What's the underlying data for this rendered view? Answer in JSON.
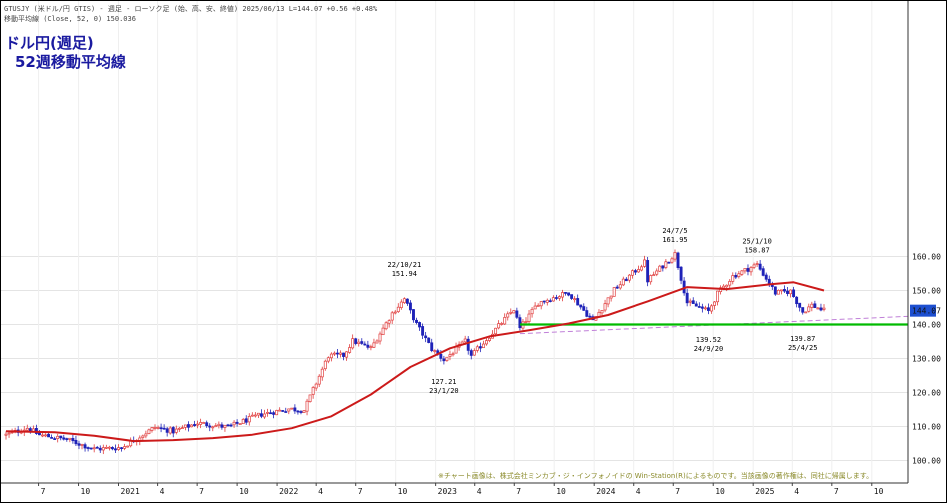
{
  "header": {
    "line1": "GTUSJY (米ドル/円 GTIS) - 週足 - ローソク足 (始、高、安、終値) 2025/06/13 L=144.07 +0.56 +0.48%",
    "line2": "移動平均線 (Close, 52, 0) 150.036"
  },
  "title": {
    "line1": "ドル円(週足)",
    "line2": "52週移動平均線"
  },
  "copyright_note": "※チャート画像は、株式会社ミンカブ・ジ・インフォノイドの Win-Station(R)によるものです。当該画像の著作権は、同社に帰属します。",
  "price_tag": "144.07",
  "chart_data": {
    "type": "candlestick",
    "timeframe": "weekly",
    "symbol": "GTUSJY",
    "last_close": 144.07,
    "ylim": [
      97.5,
      167
    ],
    "y_ticks": [
      "100.00",
      "110.00",
      "120.00",
      "130.00",
      "140.00",
      "150.00",
      "160.00"
    ],
    "x_tick_labels": [
      "7",
      "10",
      "2021",
      "4",
      "7",
      "10",
      "2022",
      "4",
      "7",
      "10",
      "2023",
      "4",
      "7",
      "10",
      "2024",
      "4",
      "7",
      "10",
      "2025",
      "4",
      "7",
      "10"
    ],
    "colors": {
      "up": "#e03c3c",
      "down": "#1e22b8",
      "ma": "#cc1a1a",
      "support": "#00bb00",
      "trend": "#c080d8",
      "price_tag": "#1d4fd0"
    },
    "close_path": [
      {
        "date": "2020-04-17",
        "close": 107.5
      },
      {
        "date": "2020-06-05",
        "close": 109.6
      },
      {
        "date": "2020-07-03",
        "close": 107.5
      },
      {
        "date": "2020-09-04",
        "close": 106.2
      },
      {
        "date": "2020-11-06",
        "close": 103.4
      },
      {
        "date": "2021-01-08",
        "close": 103.8
      },
      {
        "date": "2021-03-26",
        "close": 109.8
      },
      {
        "date": "2021-05-07",
        "close": 108.6
      },
      {
        "date": "2021-07-02",
        "close": 111.0
      },
      {
        "date": "2021-09-10",
        "close": 109.8
      },
      {
        "date": "2021-11-26",
        "close": 113.6
      },
      {
        "date": "2022-01-28",
        "close": 115.2
      },
      {
        "date": "2022-03-04",
        "close": 114.8
      },
      {
        "date": "2022-04-29",
        "close": 130.8
      },
      {
        "date": "2022-06-03",
        "close": 130.9
      },
      {
        "date": "2022-06-24",
        "close": 135.2
      },
      {
        "date": "2022-08-05",
        "close": 133.0
      },
      {
        "date": "2022-09-23",
        "close": 143.3
      },
      {
        "date": "2022-10-21",
        "close": 147.5
      },
      {
        "date": "2022-11-18",
        "close": 140.1
      },
      {
        "date": "2022-12-23",
        "close": 132.8
      },
      {
        "date": "2023-01-20",
        "close": 129.6
      },
      {
        "date": "2023-03-10",
        "close": 135.0
      },
      {
        "date": "2023-03-24",
        "close": 130.7
      },
      {
        "date": "2023-06-30",
        "close": 144.5
      },
      {
        "date": "2023-07-14",
        "close": 138.8
      },
      {
        "date": "2023-08-25",
        "close": 146.4
      },
      {
        "date": "2023-11-03",
        "close": 149.4
      },
      {
        "date": "2023-12-29",
        "close": 141.0
      },
      {
        "date": "2024-02-16",
        "close": 150.2
      },
      {
        "date": "2024-04-26",
        "close": 158.3
      },
      {
        "date": "2024-05-03",
        "close": 153.0
      },
      {
        "date": "2024-07-05",
        "close": 160.8
      },
      {
        "date": "2024-08-02",
        "close": 146.5
      },
      {
        "date": "2024-09-20",
        "close": 143.9
      },
      {
        "date": "2024-10-11",
        "close": 149.1
      },
      {
        "date": "2024-11-15",
        "close": 154.2
      },
      {
        "date": "2025-01-10",
        "close": 157.7
      },
      {
        "date": "2025-02-21",
        "close": 149.3
      },
      {
        "date": "2025-03-28",
        "close": 149.8
      },
      {
        "date": "2025-04-25",
        "close": 143.7
      },
      {
        "date": "2025-05-16",
        "close": 145.7
      },
      {
        "date": "2025-06-13",
        "close": 144.07
      }
    ],
    "moving_average": {
      "name": "移動平均線 (Close, 52, 0)",
      "last_value": 150.036,
      "points": [
        {
          "date": "2020-04-17",
          "value": 108.6
        },
        {
          "date": "2020-08-07",
          "value": 108.3
        },
        {
          "date": "2020-11-06",
          "value": 107.3
        },
        {
          "date": "2021-02-05",
          "value": 105.7
        },
        {
          "date": "2021-05-07",
          "value": 106.0
        },
        {
          "date": "2021-08-06",
          "value": 106.6
        },
        {
          "date": "2021-11-05",
          "value": 107.6
        },
        {
          "date": "2022-02-04",
          "value": 109.5
        },
        {
          "date": "2022-05-06",
          "value": 113.0
        },
        {
          "date": "2022-08-05",
          "value": 119.4
        },
        {
          "date": "2022-11-04",
          "value": 127.5
        },
        {
          "date": "2023-02-03",
          "value": 133.0
        },
        {
          "date": "2023-05-05",
          "value": 136.5
        },
        {
          "date": "2023-08-04",
          "value": 138.3
        },
        {
          "date": "2023-11-03",
          "value": 140.3
        },
        {
          "date": "2024-02-02",
          "value": 142.8
        },
        {
          "date": "2024-05-03",
          "value": 146.8
        },
        {
          "date": "2024-08-02",
          "value": 151.0
        },
        {
          "date": "2024-11-01",
          "value": 150.4
        },
        {
          "date": "2025-02-07",
          "value": 151.8
        },
        {
          "date": "2025-04-04",
          "value": 152.4
        },
        {
          "date": "2025-06-13",
          "value": 150.0
        }
      ]
    },
    "support_line": {
      "level": 140.0,
      "from": "2023-07-14",
      "to": "2025-12-31"
    },
    "trend_line": {
      "from_date": "2023-07-14",
      "from_value": 137.3,
      "to_date": "2025-12-31",
      "to_value": 142.4
    },
    "annotations": [
      {
        "date_label": "22/10/21",
        "price_label": "151.94",
        "date": "2022-10-21",
        "value": 151.94,
        "position": "above"
      },
      {
        "date_label": "23/1/20",
        "price_label": "127.21",
        "date": "2023-01-20",
        "value": 127.21,
        "position": "below"
      },
      {
        "date_label": "24/7/5",
        "price_label": "161.95",
        "date": "2024-07-05",
        "value": 161.95,
        "position": "above"
      },
      {
        "date_label": "24/9/20",
        "price_label": "139.52",
        "date": "2024-09-20",
        "value": 139.52,
        "position": "below"
      },
      {
        "date_label": "25/1/10",
        "price_label": "158.87",
        "date": "2025-01-10",
        "value": 158.87,
        "position": "above"
      },
      {
        "date_label": "25/4/25",
        "price_label": "139.87",
        "date": "2025-04-25",
        "value": 139.87,
        "position": "below"
      }
    ]
  }
}
